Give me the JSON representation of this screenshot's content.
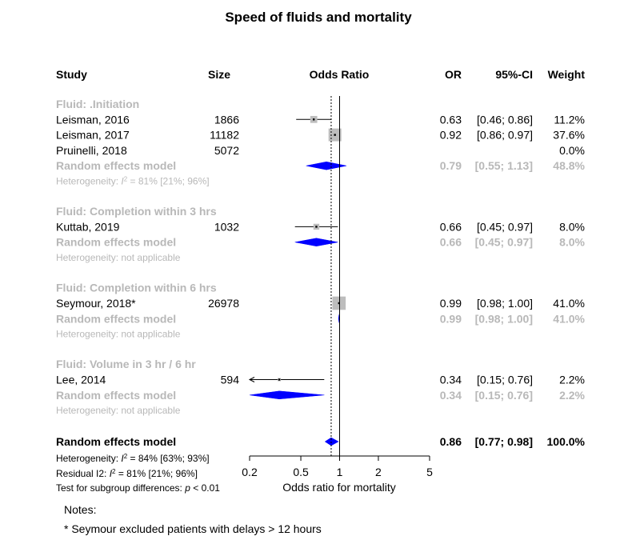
{
  "title": "Speed of fluids and mortality",
  "columns": {
    "study": "Study",
    "size": "Size",
    "or_plot": "Odds Ratio",
    "or": "OR",
    "ci": "95%-CI",
    "weight": "Weight"
  },
  "groups": [
    {
      "label": "Fluid: .Initiation",
      "studies": [
        {
          "name": "Leisman, 2016",
          "size": "1866",
          "or": 0.63,
          "lo": 0.46,
          "hi": 0.86,
          "or_text": "0.63",
          "ci_text": "[0.46; 0.86]",
          "weight": "11.2%"
        },
        {
          "name": "Leisman, 2017",
          "size": "11182",
          "or": 0.92,
          "lo": 0.86,
          "hi": 0.97,
          "or_text": "0.92",
          "ci_text": "[0.86; 0.97]",
          "weight": "37.6%"
        },
        {
          "name": "Pruinelli, 2018",
          "size": "5072",
          "or": null,
          "lo": null,
          "hi": null,
          "or_text": "",
          "ci_text": "",
          "weight": "0.0%"
        }
      ],
      "model": {
        "label": "Random effects model",
        "or": 0.79,
        "lo": 0.55,
        "hi": 1.13,
        "or_text": "0.79",
        "ci_text": "[0.55; 1.13]",
        "weight": "48.8%"
      },
      "heterogeneity": {
        "prefix": "Heterogeneity: ",
        "i2_symbol": "I",
        "i2_sup": "2",
        "value": " = 81% [21%; 96%]"
      }
    },
    {
      "label": "Fluid: Completion within 3 hrs",
      "studies": [
        {
          "name": "Kuttab, 2019",
          "size": "1032",
          "or": 0.66,
          "lo": 0.45,
          "hi": 0.97,
          "or_text": "0.66",
          "ci_text": "[0.45; 0.97]",
          "weight": "8.0%"
        }
      ],
      "model": {
        "label": "Random effects model",
        "or": 0.66,
        "lo": 0.45,
        "hi": 0.97,
        "or_text": "0.66",
        "ci_text": "[0.45; 0.97]",
        "weight": "8.0%"
      },
      "heterogeneity": {
        "text": "Heterogeneity: not applicable"
      }
    },
    {
      "label": "Fluid: Completion within 6 hrs",
      "studies": [
        {
          "name": "Seymour, 2018*",
          "size": "26978",
          "or": 0.99,
          "lo": 0.98,
          "hi": 1.0,
          "or_text": "0.99",
          "ci_text": "[0.98; 1.00]",
          "weight": "41.0%"
        }
      ],
      "model": {
        "label": "Random effects model",
        "or": 0.99,
        "lo": 0.98,
        "hi": 1.0,
        "or_text": "0.99",
        "ci_text": "[0.98; 1.00]",
        "weight": "41.0%"
      },
      "heterogeneity": {
        "text": "Heterogeneity: not applicable"
      }
    },
    {
      "label": "Fluid: Volume in 3 hr / 6 hr",
      "studies": [
        {
          "name": "Lee, 2014",
          "size": "594",
          "or": 0.34,
          "lo": 0.15,
          "hi": 0.76,
          "or_text": "0.34",
          "ci_text": "[0.15; 0.76]",
          "weight": "2.2%"
        }
      ],
      "model": {
        "label": "Random effects model",
        "or": 0.34,
        "lo": 0.15,
        "hi": 0.76,
        "or_text": "0.34",
        "ci_text": "[0.15; 0.76]",
        "weight": "2.2%"
      },
      "heterogeneity": {
        "text": "Heterogeneity: not applicable"
      }
    }
  ],
  "overall": {
    "label": "Random effects model",
    "or": 0.86,
    "lo": 0.77,
    "hi": 0.98,
    "or_text": "0.86",
    "ci_text": "[0.77; 0.98]",
    "weight": "100.0%",
    "heterogeneity": {
      "prefix": "Heterogeneity: ",
      "i2_symbol": "I",
      "i2_sup": "2",
      "value": " = 84% [63%; 93%]"
    },
    "residual": {
      "prefix": "Residual I2: ",
      "i2_symbol": "I",
      "i2_sup": "2",
      "value": " = 81% [21%; 96%]"
    },
    "subgroup_test": {
      "prefix": "Test for subgroup differences:  ",
      "p_symbol": "p",
      "value": " < 0.01"
    }
  },
  "chart_data": {
    "type": "forest",
    "title": "Speed of fluids and mortality",
    "xlabel": "Odds ratio for mortality",
    "xscale": "log",
    "xlim": [
      0.2,
      5
    ],
    "xticks": [
      0.2,
      0.5,
      1,
      2,
      5
    ],
    "xtick_labels": [
      "0.2",
      "0.5",
      "1",
      "2",
      "5"
    ],
    "reference_line": 1,
    "overall_estimate_line": 0.86,
    "colors": {
      "diamond": "#0000ff",
      "square": "#bdbdbd",
      "grey_text": "#b8b8b8"
    }
  },
  "notes": {
    "heading": "Notes:",
    "lines": [
      "* Seymour excluded patients with delays > 12 hours"
    ]
  }
}
